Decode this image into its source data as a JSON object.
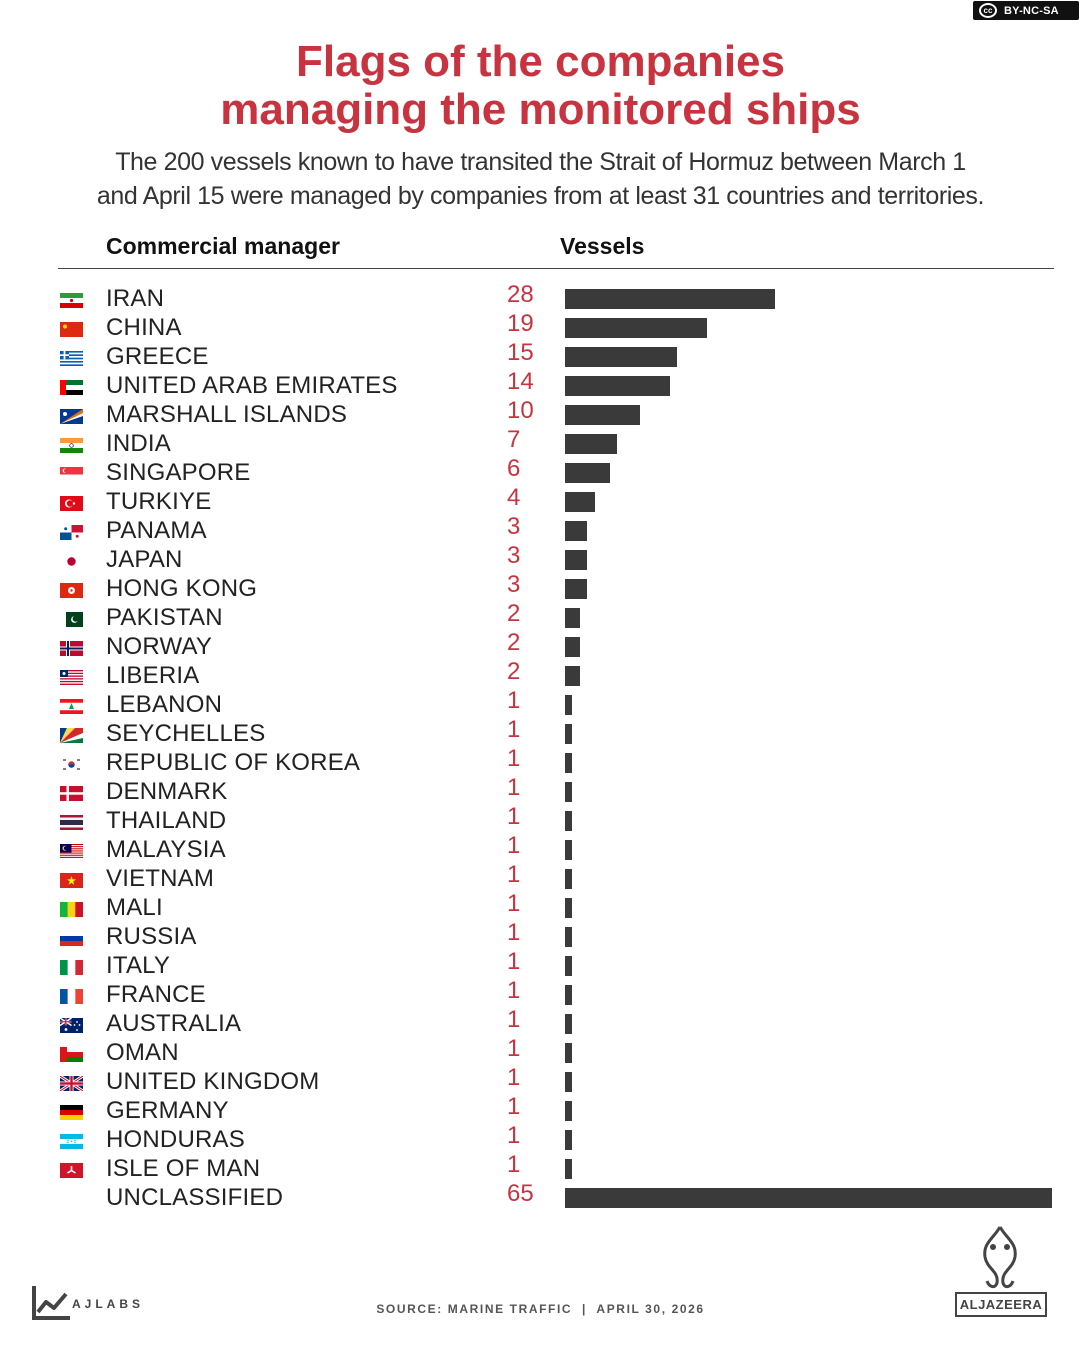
{
  "license": {
    "label": "BY-NC-SA",
    "icon": "cc-icon"
  },
  "title_line1": "Flags of the companies",
  "title_line2": "managing the monitored ships",
  "subtitle_line1": "The 200 vessels known to have transited the Strait of Hormuz between March 1",
  "subtitle_line2": "and April 15 were managed by companies from at least 31 countries and territories.",
  "headers": {
    "manager": "Commercial manager",
    "vessels": "Vessels"
  },
  "colors": {
    "title": "#c7343f",
    "value": "#c7343f",
    "bar": "#3a3a3a"
  },
  "chart_data": {
    "type": "bar",
    "orientation": "horizontal",
    "title": "Flags of the companies managing the monitored ships",
    "xlabel": "Vessels",
    "ylabel": "Commercial manager",
    "xlim": [
      0,
      65
    ],
    "grid": false,
    "legend": "none",
    "categories": [
      "IRAN",
      "CHINA",
      "GREECE",
      "UNITED ARAB EMIRATES",
      "MARSHALL ISLANDS",
      "INDIA",
      "SINGAPORE",
      "TURKIYE",
      "PANAMA",
      "JAPAN",
      "HONG KONG",
      "PAKISTAN",
      "NORWAY",
      "LIBERIA",
      "LEBANON",
      "SEYCHELLES",
      "REPUBLIC OF KOREA",
      "DENMARK",
      "THAILAND",
      "MALAYSIA",
      "VIETNAM",
      "MALI",
      "RUSSIA",
      "ITALY",
      "FRANCE",
      "AUSTRALIA",
      "OMAN",
      "UNITED KINGDOM",
      "GERMANY",
      "HONDURAS",
      "ISLE OF MAN",
      "UNCLASSIFIED"
    ],
    "values": [
      28,
      19,
      15,
      14,
      10,
      7,
      6,
      4,
      3,
      3,
      3,
      2,
      2,
      2,
      1,
      1,
      1,
      1,
      1,
      1,
      1,
      1,
      1,
      1,
      1,
      1,
      1,
      1,
      1,
      1,
      1,
      65
    ],
    "flags": [
      "iran-flag-icon",
      "china-flag-icon",
      "greece-flag-icon",
      "uae-flag-icon",
      "marshall-islands-flag-icon",
      "india-flag-icon",
      "singapore-flag-icon",
      "turkiye-flag-icon",
      "panama-flag-icon",
      "japan-flag-icon",
      "hong-kong-flag-icon",
      "pakistan-flag-icon",
      "norway-flag-icon",
      "liberia-flag-icon",
      "lebanon-flag-icon",
      "seychelles-flag-icon",
      "korea-flag-icon",
      "denmark-flag-icon",
      "thailand-flag-icon",
      "malaysia-flag-icon",
      "vietnam-flag-icon",
      "mali-flag-icon",
      "russia-flag-icon",
      "italy-flag-icon",
      "france-flag-icon",
      "australia-flag-icon",
      "oman-flag-icon",
      "uk-flag-icon",
      "germany-flag-icon",
      "honduras-flag-icon",
      "isle-of-man-flag-icon",
      ""
    ]
  },
  "footer": {
    "brand": "AJLABS",
    "source": "SOURCE: MARINE TRAFFIC  |  APRIL 30, 2026",
    "logo": "ALJAZEERA",
    "logo_icon": "al-jazeera-logo-icon",
    "ajlabs_icon": "ajlabs-chart-icon"
  }
}
